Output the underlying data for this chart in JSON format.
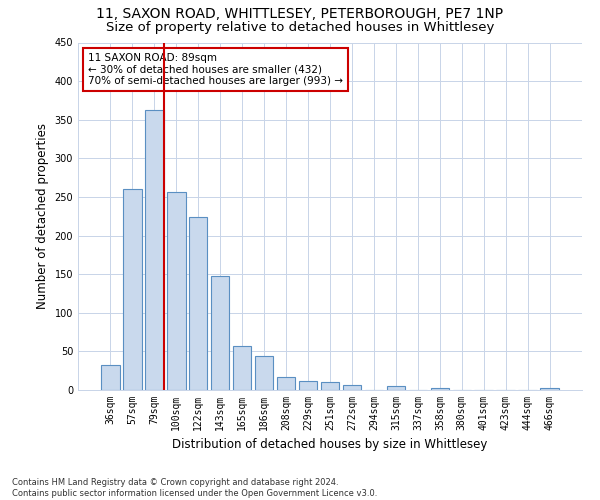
{
  "title_line1": "11, SAXON ROAD, WHITTLESEY, PETERBOROUGH, PE7 1NP",
  "title_line2": "Size of property relative to detached houses in Whittlesey",
  "xlabel": "Distribution of detached houses by size in Whittlesey",
  "ylabel": "Number of detached properties",
  "footnote": "Contains HM Land Registry data © Crown copyright and database right 2024.\nContains public sector information licensed under the Open Government Licence v3.0.",
  "bar_labels": [
    "36sqm",
    "57sqm",
    "79sqm",
    "100sqm",
    "122sqm",
    "143sqm",
    "165sqm",
    "186sqm",
    "208sqm",
    "229sqm",
    "251sqm",
    "272sqm",
    "294sqm",
    "315sqm",
    "337sqm",
    "358sqm",
    "380sqm",
    "401sqm",
    "423sqm",
    "444sqm",
    "466sqm"
  ],
  "bar_values": [
    32,
    260,
    363,
    256,
    224,
    148,
    57,
    44,
    17,
    12,
    10,
    7,
    0,
    5,
    0,
    2,
    0,
    0,
    0,
    0,
    3
  ],
  "bar_color": "#c9d9ed",
  "bar_edge_color": "#5a8fc2",
  "vline_color": "#cc0000",
  "annotation_line1": "11 SAXON ROAD: 89sqm",
  "annotation_line2": "← 30% of detached houses are smaller (432)",
  "annotation_line3": "70% of semi-detached houses are larger (993) →",
  "annotation_box_color": "#cc0000",
  "ylim": [
    0,
    450
  ],
  "yticks": [
    0,
    50,
    100,
    150,
    200,
    250,
    300,
    350,
    400,
    450
  ],
  "background_color": "#ffffff",
  "grid_color": "#c8d4e8",
  "title_fontsize": 10,
  "subtitle_fontsize": 9.5,
  "axis_label_fontsize": 8.5,
  "tick_fontsize": 7,
  "annotation_fontsize": 7.5,
  "footnote_fontsize": 6
}
